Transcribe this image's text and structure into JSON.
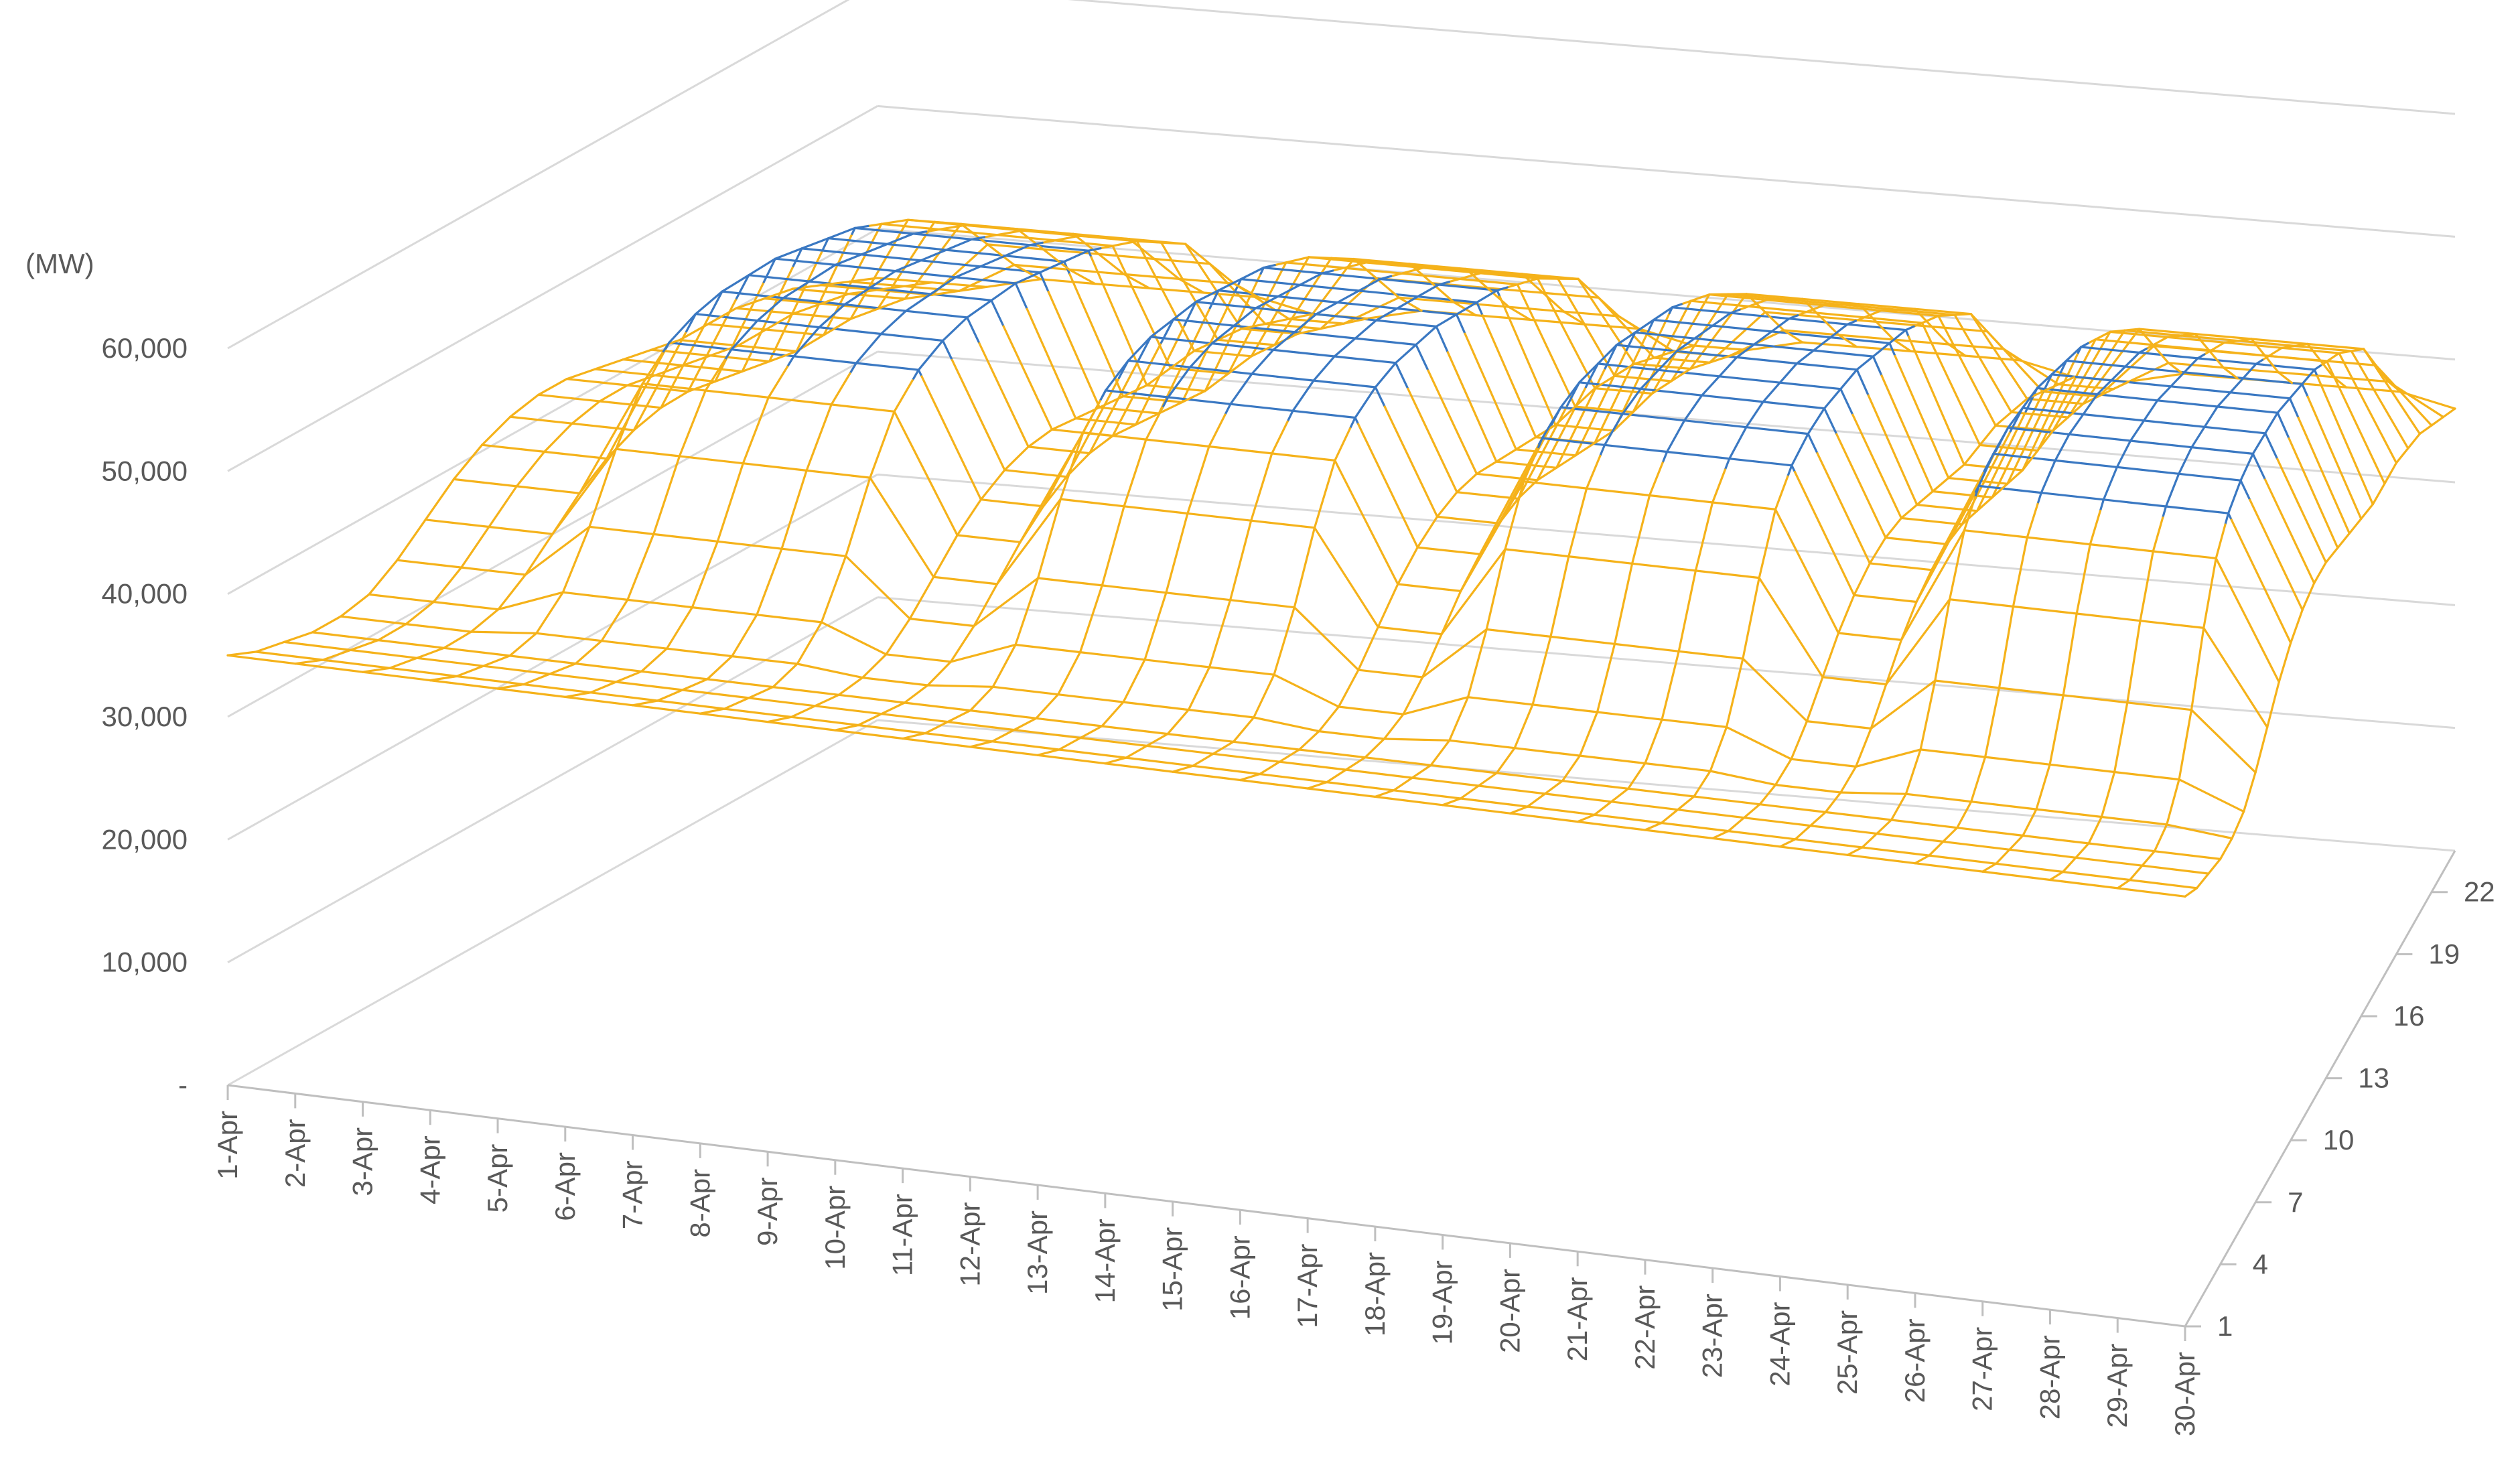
{
  "chart_data": {
    "type": "surface-3d-wireframe",
    "title": "",
    "z_unit_label": "(MW)",
    "z_ticks": [
      "-",
      "10,000",
      "20,000",
      "30,000",
      "40,000",
      "50,000",
      "60,000"
    ],
    "z_range": [
      0,
      60000
    ],
    "x_labels": [
      "1-Apr",
      "2-Apr",
      "3-Apr",
      "4-Apr",
      "5-Apr",
      "6-Apr",
      "7-Apr",
      "8-Apr",
      "9-Apr",
      "10-Apr",
      "11-Apr",
      "12-Apr",
      "13-Apr",
      "14-Apr",
      "15-Apr",
      "16-Apr",
      "17-Apr",
      "18-Apr",
      "19-Apr",
      "20-Apr",
      "21-Apr",
      "22-Apr",
      "23-Apr",
      "24-Apr",
      "25-Apr",
      "26-Apr",
      "27-Apr",
      "28-Apr",
      "29-Apr",
      "30-Apr"
    ],
    "y_ticks": [
      "1",
      "4",
      "7",
      "10",
      "13",
      "16",
      "19",
      "22"
    ],
    "y_hours": 24,
    "grid": true,
    "band_threshold": 50000,
    "colors": {
      "below_50000": "#F5B21A",
      "above_50000": "#3A78C2",
      "grid": "#d9d9d9",
      "text": "#595959"
    },
    "weekday_profile_mw": [
      35000,
      34000,
      33500,
      33000,
      33500,
      35500,
      39500,
      44500,
      48500,
      50500,
      51500,
      52000,
      52000,
      52000,
      51500,
      51000,
      50500,
      49500,
      48500,
      47000,
      45500,
      42500,
      39500,
      37000
    ],
    "weekend_profile_mw": [
      35000,
      34000,
      33500,
      33000,
      33000,
      33500,
      35000,
      37000,
      39000,
      40500,
      41500,
      42000,
      42000,
      41500,
      41000,
      40500,
      40000,
      40000,
      40000,
      39500,
      39000,
      38000,
      37000,
      36000
    ],
    "day_types": [
      "weekend",
      "weekend",
      "weekend",
      "weekday",
      "weekday",
      "weekday",
      "weekday",
      "weekday",
      "weekend",
      "weekend",
      "weekday",
      "weekday",
      "weekday",
      "weekday",
      "weekday",
      "weekend",
      "weekend",
      "weekday",
      "weekday",
      "weekday",
      "weekday",
      "weekday",
      "weekend",
      "weekend",
      "weekday",
      "weekday",
      "weekday",
      "weekday",
      "weekday",
      "weekend"
    ]
  }
}
